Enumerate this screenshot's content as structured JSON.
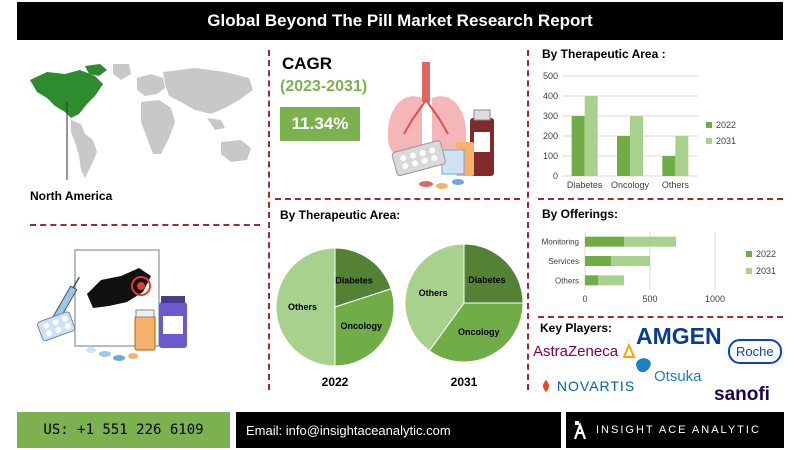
{
  "header": {
    "title": "Global Beyond The Pill Market Research Report"
  },
  "region": {
    "label": "North America"
  },
  "cagr": {
    "title": "CAGR",
    "period": "(2023-2031)",
    "value": "11.34%"
  },
  "pies_title": "By Therapeutic Area:",
  "pie_years": [
    "2022",
    "2031"
  ],
  "key_players": {
    "title": "Key Players:",
    "logos": [
      "AstraZeneca",
      "AMGEN",
      "Roche",
      "NOVARTIS",
      "Otsuka",
      "sanofi"
    ]
  },
  "footer": {
    "phone": "US: +1 551 226 6109",
    "email": "Email: info@insightaceanalytic.com",
    "brand": "INSIGHT ACE ANALYTIC"
  },
  "colors": {
    "light_green": "#a9d18e",
    "mid_green": "#70ad47",
    "dark_green": "#548235",
    "accent": "#7bb24f",
    "divider": "#a52a2a"
  },
  "chart_data": [
    {
      "type": "bar",
      "title": "By Therapeutic Area :",
      "categories": [
        "Diabetes",
        "Oncology",
        "Others"
      ],
      "series": [
        {
          "name": "2022",
          "values": [
            300,
            200,
            100
          ]
        },
        {
          "name": "2031",
          "values": [
            400,
            300,
            200
          ]
        }
      ],
      "yticks": [
        0,
        100,
        200,
        300,
        400,
        500
      ],
      "ylim": [
        0,
        500
      ],
      "legend": "right",
      "grid": true
    },
    {
      "type": "bar",
      "orientation": "horizontal",
      "title": "By Offerings:",
      "categories": [
        "Monitoring",
        "Services",
        "Others"
      ],
      "series": [
        {
          "name": "2022",
          "values": [
            300,
            200,
            100
          ]
        },
        {
          "name": "2031",
          "values": [
            400,
            300,
            200
          ]
        }
      ],
      "stacked": true,
      "xticks": [
        0,
        500,
        1000
      ],
      "xlim": [
        0,
        1000
      ],
      "legend": "right",
      "grid": true
    },
    {
      "type": "pie",
      "year": "2022",
      "labels": [
        "Diabetes",
        "Oncology",
        "Others"
      ],
      "values": [
        20,
        30,
        50
      ]
    },
    {
      "type": "pie",
      "year": "2031",
      "labels": [
        "Diabetes",
        "Oncology",
        "Others"
      ],
      "values": [
        25,
        35,
        40
      ]
    }
  ]
}
